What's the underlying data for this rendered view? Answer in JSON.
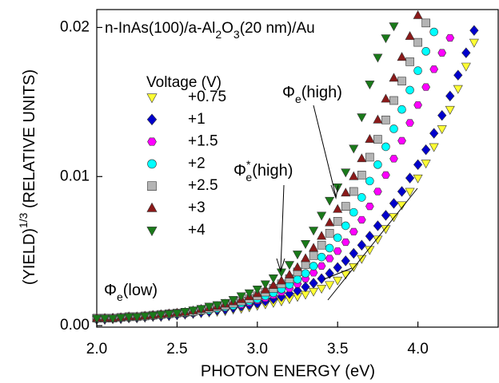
{
  "chart_data": {
    "type": "scatter",
    "title": [
      {
        "text": "n-InAs(100)/a-Al"
      },
      {
        "text": "2",
        "baseline": "sub"
      },
      {
        "text": "O"
      },
      {
        "text": "3",
        "baseline": "sub"
      },
      {
        "text": "(20 nm)/Au"
      }
    ],
    "x_label": "PHOTON ENERGY (eV)",
    "y_label": [
      {
        "text": "(YIELD)"
      },
      {
        "text": "1/3",
        "baseline": "super"
      },
      {
        "text": " (RELATIVE UNITS)"
      }
    ],
    "legend_title": "Voltage (V)",
    "xlim": [
      2.0,
      4.5
    ],
    "ylim": [
      -0.0001,
      0.0212
    ],
    "xticks": [
      {
        "value": 2,
        "label": "2.0"
      },
      {
        "value": 2.5,
        "label": "2.5"
      },
      {
        "value": 3,
        "label": "3.0"
      },
      {
        "value": 3.5,
        "label": "3.5"
      },
      {
        "value": 4,
        "label": "4.0"
      }
    ],
    "yticks": [
      {
        "value": 0,
        "label": "0.00"
      },
      {
        "value": 0.01,
        "label": "0.01"
      },
      {
        "value": 0.02,
        "label": "0.02"
      }
    ],
    "annotations": [
      {
        "symbol": "Φ",
        "sub": "e",
        "text": "(high)"
      },
      {
        "symbol": "Φ",
        "sup": "*",
        "sub": "e",
        "text": "(high)"
      },
      {
        "symbol": "Φ",
        "sub": "e",
        "text": "(low)"
      }
    ],
    "series": [
      {
        "name": "+0.75",
        "color": "#ffff33",
        "marker": "triangle-down",
        "x": [
          2.0,
          2.05,
          2.1,
          2.15,
          2.2,
          2.25,
          2.3,
          2.35,
          2.4,
          2.45,
          2.5,
          2.55,
          2.6,
          2.65,
          2.7,
          2.75,
          2.8,
          2.85,
          2.9,
          2.95,
          3.0,
          3.05,
          3.1,
          3.15,
          3.2,
          3.25,
          3.3,
          3.35,
          3.4,
          3.45,
          3.5,
          3.55,
          3.6,
          3.65,
          3.7,
          3.75,
          3.8,
          3.85,
          3.9,
          3.95,
          4.0,
          4.05,
          4.1,
          4.15,
          4.2,
          4.25,
          4.3,
          4.35
        ],
        "values": [
          0.0004,
          0.0004,
          0.00045,
          0.00045,
          0.0005,
          0.0005,
          0.00055,
          0.0006,
          0.0006,
          0.00065,
          0.0007,
          0.00075,
          0.0008,
          0.00085,
          0.0009,
          0.00095,
          0.001,
          0.0011,
          0.00115,
          0.00125,
          0.00135,
          0.00145,
          0.00155,
          0.00165,
          0.0018,
          0.00195,
          0.0021,
          0.0023,
          0.0025,
          0.00275,
          0.00305,
          0.00345,
          0.00395,
          0.0045,
          0.0051,
          0.0058,
          0.0065,
          0.0073,
          0.0081,
          0.009,
          0.0099,
          0.0109,
          0.012,
          0.0132,
          0.0145,
          0.0159,
          0.0174,
          0.019
        ]
      },
      {
        "name": "+1",
        "color": "#0000cc",
        "marker": "diamond",
        "x": [
          2.0,
          2.05,
          2.1,
          2.15,
          2.2,
          2.25,
          2.3,
          2.35,
          2.4,
          2.45,
          2.5,
          2.55,
          2.6,
          2.65,
          2.7,
          2.75,
          2.8,
          2.85,
          2.9,
          2.95,
          3.0,
          3.05,
          3.1,
          3.15,
          3.2,
          3.25,
          3.3,
          3.35,
          3.4,
          3.45,
          3.5,
          3.55,
          3.6,
          3.65,
          3.7,
          3.75,
          3.8,
          3.85,
          3.9,
          3.95,
          4.0,
          4.05,
          4.1,
          4.15,
          4.2,
          4.25,
          4.3,
          4.35
        ],
        "values": [
          0.00045,
          0.00045,
          0.0005,
          0.0005,
          0.00055,
          0.00055,
          0.0006,
          0.00065,
          0.00065,
          0.0007,
          0.00075,
          0.0008,
          0.00085,
          0.0009,
          0.00095,
          0.00105,
          0.0011,
          0.0012,
          0.0013,
          0.0014,
          0.0015,
          0.00165,
          0.0018,
          0.00195,
          0.00215,
          0.00235,
          0.0026,
          0.00285,
          0.00315,
          0.0035,
          0.0039,
          0.00435,
          0.00485,
          0.0054,
          0.006,
          0.0067,
          0.0074,
          0.0082,
          0.009,
          0.0099,
          0.0108,
          0.0118,
          0.0129,
          0.0141,
          0.0154,
          0.0168,
          0.0183,
          0.0198
        ]
      },
      {
        "name": "+1.5",
        "color": "#ff00ff",
        "marker": "hexagon",
        "x": [
          2.0,
          2.05,
          2.1,
          2.15,
          2.2,
          2.25,
          2.3,
          2.35,
          2.4,
          2.45,
          2.5,
          2.55,
          2.6,
          2.65,
          2.7,
          2.75,
          2.8,
          2.85,
          2.9,
          2.95,
          3.0,
          3.05,
          3.1,
          3.15,
          3.2,
          3.25,
          3.3,
          3.35,
          3.4,
          3.45,
          3.5,
          3.55,
          3.6,
          3.65,
          3.7,
          3.75,
          3.8,
          3.85,
          3.9,
          3.95,
          4.0,
          4.05,
          4.1,
          4.15,
          4.2
        ],
        "values": [
          0.00045,
          0.0005,
          0.0005,
          0.00055,
          0.00055,
          0.0006,
          0.0006,
          0.00065,
          0.0007,
          0.00075,
          0.0008,
          0.0008,
          0.00085,
          0.00095,
          0.001,
          0.0011,
          0.0012,
          0.0013,
          0.0014,
          0.00155,
          0.0017,
          0.00185,
          0.00205,
          0.00225,
          0.0025,
          0.0028,
          0.00315,
          0.00355,
          0.004,
          0.0045,
          0.005,
          0.0056,
          0.0063,
          0.0071,
          0.008,
          0.009,
          0.0101,
          0.0112,
          0.0124,
          0.0136,
          0.0148,
          0.016,
          0.0172,
          0.0183,
          0.0193
        ]
      },
      {
        "name": "+2",
        "color": "#00ffff",
        "marker": "circle",
        "x": [
          2.0,
          2.05,
          2.1,
          2.15,
          2.2,
          2.25,
          2.3,
          2.35,
          2.4,
          2.45,
          2.5,
          2.55,
          2.6,
          2.65,
          2.7,
          2.75,
          2.8,
          2.85,
          2.9,
          2.95,
          3.0,
          3.05,
          3.1,
          3.15,
          3.2,
          3.25,
          3.3,
          3.35,
          3.4,
          3.45,
          3.5,
          3.55,
          3.6,
          3.65,
          3.7,
          3.75,
          3.8,
          3.85,
          3.9,
          3.95,
          4.0,
          4.05,
          4.1
        ],
        "values": [
          0.00045,
          0.0005,
          0.0005,
          0.00055,
          0.00055,
          0.0006,
          0.00065,
          0.0007,
          0.0007,
          0.00075,
          0.0008,
          0.00085,
          0.0009,
          0.001,
          0.00105,
          0.00115,
          0.00125,
          0.00135,
          0.0015,
          0.00165,
          0.0018,
          0.002,
          0.0022,
          0.00245,
          0.00275,
          0.0031,
          0.0035,
          0.004,
          0.0046,
          0.0052,
          0.0059,
          0.0067,
          0.0076,
          0.0086,
          0.0097,
          0.0108,
          0.012,
          0.0132,
          0.0145,
          0.0158,
          0.0171,
          0.0184,
          0.0197
        ]
      },
      {
        "name": "+2.5",
        "color": "#b4b4b4",
        "marker": "square",
        "x": [
          2.0,
          2.05,
          2.1,
          2.15,
          2.2,
          2.25,
          2.3,
          2.35,
          2.4,
          2.45,
          2.5,
          2.55,
          2.6,
          2.65,
          2.7,
          2.75,
          2.8,
          2.85,
          2.9,
          2.95,
          3.0,
          3.05,
          3.1,
          3.15,
          3.2,
          3.25,
          3.3,
          3.35,
          3.4,
          3.45,
          3.5,
          3.55,
          3.6,
          3.65,
          3.7,
          3.75,
          3.8,
          3.85,
          3.9,
          3.95,
          4.0,
          4.05
        ],
        "values": [
          0.0005,
          0.0005,
          0.0005,
          0.00055,
          0.0006,
          0.0006,
          0.00065,
          0.0007,
          0.00075,
          0.0008,
          0.00085,
          0.0009,
          0.00095,
          0.00105,
          0.00115,
          0.00125,
          0.00135,
          0.0015,
          0.00165,
          0.0018,
          0.002,
          0.00225,
          0.0025,
          0.0028,
          0.00315,
          0.0036,
          0.0041,
          0.0047,
          0.0054,
          0.0062,
          0.007,
          0.008,
          0.009,
          0.0101,
          0.0113,
          0.0125,
          0.0138,
          0.0151,
          0.0164,
          0.0177,
          0.019,
          0.0203
        ]
      },
      {
        "name": "+3",
        "color": "#8b1a1a",
        "marker": "triangle-up",
        "x": [
          2.0,
          2.05,
          2.1,
          2.15,
          2.2,
          2.25,
          2.3,
          2.35,
          2.4,
          2.45,
          2.5,
          2.55,
          2.6,
          2.65,
          2.7,
          2.75,
          2.8,
          2.85,
          2.9,
          2.95,
          3.0,
          3.05,
          3.1,
          3.15,
          3.2,
          3.25,
          3.3,
          3.35,
          3.4,
          3.45,
          3.5,
          3.55,
          3.6,
          3.65,
          3.7,
          3.75,
          3.8,
          3.85,
          3.9,
          3.95,
          4.0
        ],
        "values": [
          0.0005,
          0.0005,
          0.0005,
          0.00055,
          0.0006,
          0.0006,
          0.00065,
          0.0007,
          0.00075,
          0.0008,
          0.00085,
          0.0009,
          0.001,
          0.0011,
          0.0012,
          0.0013,
          0.00145,
          0.0016,
          0.00175,
          0.00195,
          0.00215,
          0.0024,
          0.0027,
          0.003,
          0.0034,
          0.0039,
          0.0045,
          0.0052,
          0.006,
          0.0069,
          0.0078,
          0.0089,
          0.01,
          0.0112,
          0.0125,
          0.0138,
          0.0152,
          0.0166,
          0.018,
          0.0194,
          0.0208
        ]
      },
      {
        "name": "+4",
        "color": "#1a7a1a",
        "marker": "triangle-down",
        "x": [
          2.0,
          2.05,
          2.1,
          2.15,
          2.2,
          2.25,
          2.3,
          2.35,
          2.4,
          2.45,
          2.5,
          2.55,
          2.6,
          2.65,
          2.7,
          2.75,
          2.8,
          2.85,
          2.9,
          2.95,
          3.0,
          3.05,
          3.1,
          3.15,
          3.2,
          3.25,
          3.3,
          3.35,
          3.4,
          3.45,
          3.5,
          3.55,
          3.6,
          3.65,
          3.7,
          3.75,
          3.8,
          3.85
        ],
        "values": [
          0.0005,
          0.0005,
          0.0005,
          0.00055,
          0.0006,
          0.0006,
          0.00065,
          0.0007,
          0.00075,
          0.0008,
          0.00085,
          0.00095,
          0.00105,
          0.00115,
          0.0013,
          0.0014,
          0.00155,
          0.00175,
          0.002,
          0.0022,
          0.00245,
          0.0028,
          0.0032,
          0.0036,
          0.0041,
          0.0048,
          0.0055,
          0.0064,
          0.0074,
          0.0084,
          0.0093,
          0.0103,
          0.0119,
          0.014,
          0.0162,
          0.018,
          0.0193,
          0.0201
        ]
      }
    ]
  }
}
